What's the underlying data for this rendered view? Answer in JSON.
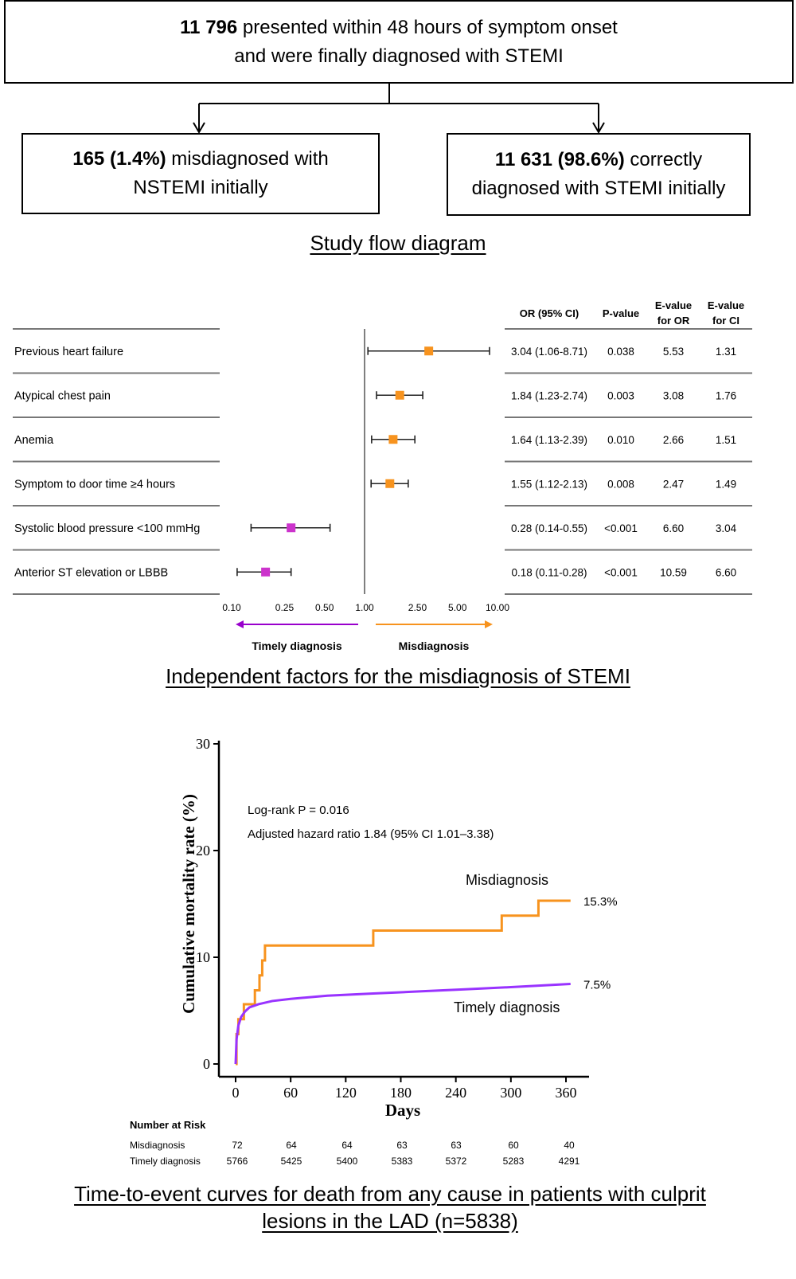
{
  "flow": {
    "top": {
      "count": "11 796",
      "line1_rest": " presented within 48 hours of symptom onset",
      "line2": "and were finally diagnosed with STEMI"
    },
    "left": {
      "count": "165 (1.4%)",
      "line1_rest": " misdiagnosed with",
      "line2": "NSTEMI initially"
    },
    "right": {
      "count": "11 631 (98.6%)",
      "line1_rest": " correctly",
      "line2": "diagnosed with STEMI initially"
    },
    "caption": "Study flow diagram"
  },
  "forest": {
    "headers": {
      "or": "OR (95% CI)",
      "p": "P-value",
      "eor_1": "E-value",
      "eor_2": "for OR",
      "eci_1": "E-value",
      "eci_2": "for CI"
    },
    "rows": [
      {
        "label": "Previous heart failure",
        "or": 3.04,
        "lo": 1.06,
        "hi": 8.71,
        "or_text": "3.04 (1.06-8.71)",
        "p": "0.038",
        "e_or": "5.53",
        "e_ci": "1.31",
        "color": "#f7931e"
      },
      {
        "label": "Atypical chest pain",
        "or": 1.84,
        "lo": 1.23,
        "hi": 2.74,
        "or_text": "1.84 (1.23-2.74)",
        "p": "0.003",
        "e_or": "3.08",
        "e_ci": "1.76",
        "color": "#f7931e"
      },
      {
        "label": "Anemia",
        "or": 1.64,
        "lo": 1.13,
        "hi": 2.39,
        "or_text": "1.64 (1.13-2.39)",
        "p": "0.010",
        "e_or": "2.66",
        "e_ci": "1.51",
        "color": "#f7931e"
      },
      {
        "label": "Symptom to door time ≥4 hours",
        "or": 1.55,
        "lo": 1.12,
        "hi": 2.13,
        "or_text": "1.55 (1.12-2.13)",
        "p": "0.008",
        "e_or": "2.47",
        "e_ci": "1.49",
        "color": "#f7931e"
      },
      {
        "label": "Systolic blood pressure <100 mmHg",
        "or": 0.28,
        "lo": 0.14,
        "hi": 0.55,
        "or_text": "0.28 (0.14-0.55)",
        "p": "<0.001",
        "e_or": "6.60",
        "e_ci": "3.04",
        "color": "#cc33cc"
      },
      {
        "label": "Anterior ST elevation or LBBB",
        "or": 0.18,
        "lo": 0.11,
        "hi": 0.28,
        "or_text": "0.18 (0.11-0.28)",
        "p": "<0.001",
        "e_or": "10.59",
        "e_ci": "6.60",
        "color": "#cc33cc"
      }
    ],
    "axis_ticks": [
      "0.10",
      "0.25",
      "0.50",
      "1.00",
      "2.50",
      "5.00",
      "10.00"
    ],
    "left_label": "Timely diagnosis",
    "right_label": "Misdiagnosis",
    "caption": "Independent factors for the misdiagnosis of STEMI"
  },
  "chart_data": {
    "type": "line",
    "title": "",
    "xlabel": "Days",
    "ylabel": "Cumulative mortality rate (%)",
    "xlim": [
      0,
      370
    ],
    "ylim": [
      0,
      30
    ],
    "xticks": [
      "0",
      "60",
      "120",
      "180",
      "240",
      "300",
      "360"
    ],
    "yticks": [
      "0",
      "10",
      "20",
      "30"
    ],
    "annotations": {
      "logrank": "Log-rank P = 0.016",
      "hr": "Adjusted hazard ratio 1.84 (95% CI 1.01–3.38)"
    },
    "series": [
      {
        "name": "Misdiagnosis",
        "color": "#f7931e",
        "end_label": "15.3%",
        "step": true,
        "x": [
          0,
          1,
          3,
          5,
          9,
          21,
          26,
          29,
          32,
          150,
          290,
          330,
          365
        ],
        "y": [
          0,
          2.8,
          4.2,
          4.2,
          5.6,
          6.9,
          8.3,
          9.7,
          11.1,
          12.5,
          13.9,
          15.3,
          15.3
        ]
      },
      {
        "name": "Timely diagnosis",
        "color": "#9933ff",
        "end_label": "7.5%",
        "step": false,
        "x": [
          0,
          1,
          3,
          6,
          10,
          15,
          25,
          40,
          60,
          100,
          150,
          200,
          250,
          300,
          365
        ],
        "y": [
          0,
          2.3,
          3.6,
          4.4,
          4.9,
          5.3,
          5.6,
          5.9,
          6.1,
          6.4,
          6.6,
          6.8,
          7.0,
          7.2,
          7.5
        ]
      }
    ]
  },
  "risk_table": {
    "title": "Number at Risk",
    "rows": [
      {
        "label": "Misdiagnosis",
        "values": [
          "72",
          "64",
          "64",
          "63",
          "63",
          "60",
          "40"
        ]
      },
      {
        "label": "Timely diagnosis",
        "values": [
          "5766",
          "5425",
          "5400",
          "5383",
          "5372",
          "5283",
          "4291"
        ]
      }
    ]
  },
  "km_caption_1": "Time-to-event curves for death from any cause in patients with culprit",
  "km_caption_2": "lesions in the LAD (n=5838)"
}
